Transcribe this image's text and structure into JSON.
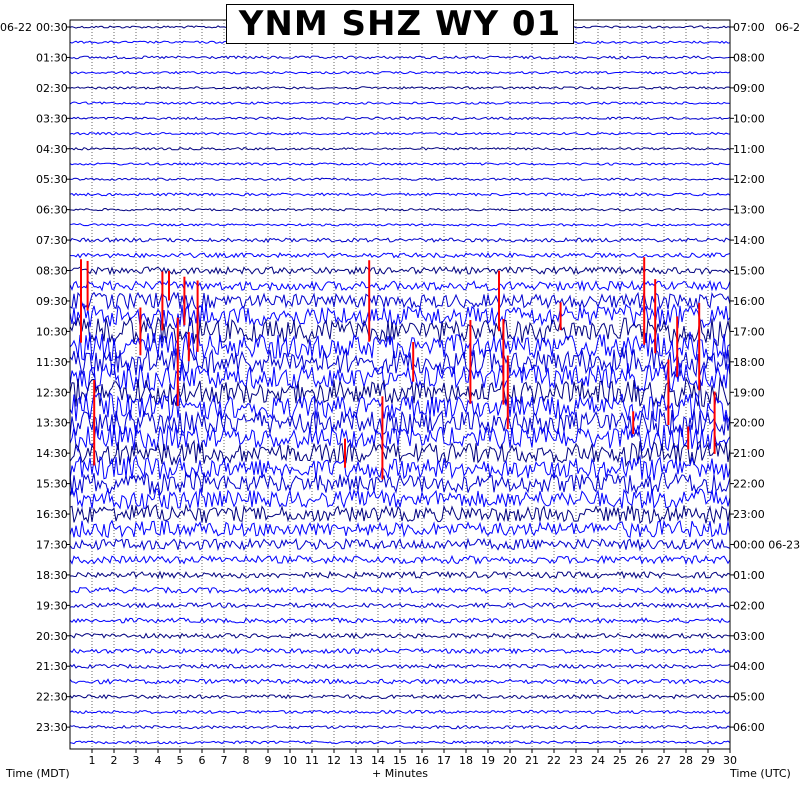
{
  "title": "YNM SHZ WY 01",
  "date_left": "06-22",
  "date_right": "06-2",
  "xlabel": "+ Minutes",
  "left_axis_label": "Time (MDT)",
  "right_axis_label": "Time (UTC)",
  "colors": {
    "trace_cycle": [
      "#000080",
      "#ff0000",
      "#0000ff",
      "#0000ff"
    ],
    "clip": "#ff0000",
    "background": "#ffffff",
    "grid": "#000000"
  },
  "chart_data": {
    "type": "line",
    "description_kind": "helicorder",
    "x_range": [
      0,
      30
    ],
    "x_ticks": [
      "1",
      "2",
      "3",
      "4",
      "5",
      "6",
      "7",
      "8",
      "9",
      "10",
      "11",
      "12",
      "13",
      "14",
      "15",
      "16",
      "17",
      "18",
      "19",
      "20",
      "21",
      "22",
      "23",
      "24",
      "25",
      "26",
      "27",
      "28",
      "29",
      "30"
    ],
    "rows_per_label": 2,
    "total_rows": 48,
    "left_ticks": [
      "00:30",
      "01:30",
      "02:30",
      "03:30",
      "04:30",
      "05:30",
      "06:30",
      "07:30",
      "08:30",
      "09:30",
      "10:30",
      "11:30",
      "12:30",
      "13:30",
      "14:30",
      "15:30",
      "16:30",
      "17:30",
      "18:30",
      "19:30",
      "20:30",
      "21:30",
      "22:30",
      "23:30"
    ],
    "right_ticks": [
      "07:00",
      "08:00",
      "09:00",
      "10:00",
      "11:00",
      "12:00",
      "13:00",
      "14:00",
      "15:00",
      "16:00",
      "17:00",
      "18:00",
      "19:00",
      "20:00",
      "21:00",
      "22:00",
      "23:00",
      "00:00 06-23",
      "01:00",
      "02:00",
      "03:00",
      "04:00",
      "05:00",
      "06:00"
    ],
    "row_amplitude": [
      0.15,
      0.15,
      0.18,
      0.15,
      0.15,
      0.15,
      0.15,
      0.15,
      0.15,
      0.15,
      0.15,
      0.18,
      0.15,
      0.15,
      0.25,
      0.3,
      0.45,
      0.6,
      0.9,
      1.3,
      1.5,
      1.6,
      1.6,
      1.5,
      1.5,
      1.5,
      1.5,
      1.4,
      1.3,
      1.3,
      1.2,
      1.1,
      1.0,
      0.9,
      0.7,
      0.5,
      0.4,
      0.35,
      0.3,
      0.3,
      0.3,
      0.3,
      0.25,
      0.3,
      0.25,
      0.2,
      0.2,
      0.18
    ]
  }
}
